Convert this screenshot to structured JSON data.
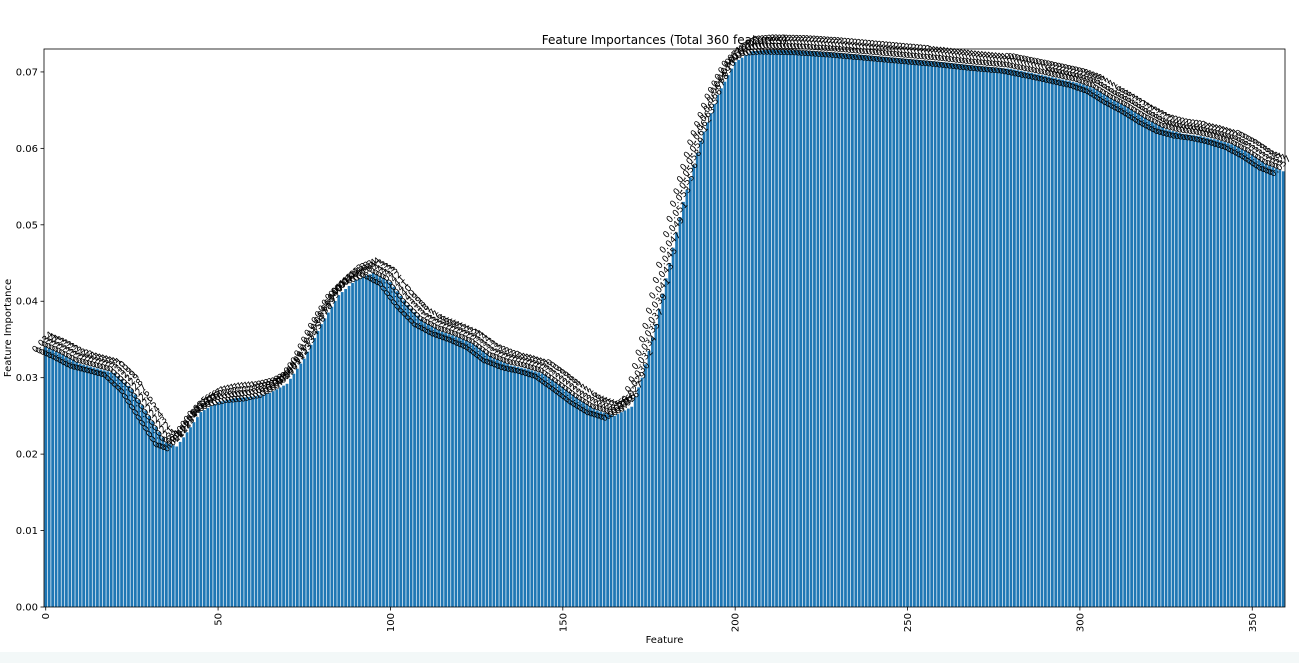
{
  "chart_data": {
    "type": "bar",
    "title": "Feature Importances (Total 360 features)",
    "xlabel": "Feature",
    "ylabel": "Feature Importance",
    "n_features": 360,
    "xlim": [
      -0.5,
      359.5
    ],
    "ylim": [
      0,
      0.073
    ],
    "xticks": [
      0,
      50,
      100,
      150,
      200,
      250,
      300,
      350
    ],
    "xtick_rotation": 90,
    "yticks": [
      0.0,
      0.01,
      0.02,
      0.03,
      0.04,
      0.05,
      0.06,
      0.07
    ],
    "ytick_labels": [
      "0.00",
      "0.01",
      "0.02",
      "0.03",
      "0.04",
      "0.05",
      "0.06",
      "0.07"
    ],
    "bar_color": "#1f77b4",
    "bar_labels": "value of each bar printed above it with 3 decimals, rotated 45 degrees",
    "grid": false,
    "legend": "none",
    "profile_knots": [
      [
        0,
        0.034
      ],
      [
        5,
        0.033
      ],
      [
        10,
        0.0318
      ],
      [
        15,
        0.0312
      ],
      [
        20,
        0.0306
      ],
      [
        25,
        0.0285
      ],
      [
        30,
        0.025
      ],
      [
        35,
        0.0215
      ],
      [
        38,
        0.021
      ],
      [
        40,
        0.0222
      ],
      [
        45,
        0.0255
      ],
      [
        50,
        0.0268
      ],
      [
        55,
        0.0273
      ],
      [
        60,
        0.0275
      ],
      [
        65,
        0.028
      ],
      [
        70,
        0.0292
      ],
      [
        75,
        0.0325
      ],
      [
        80,
        0.037
      ],
      [
        85,
        0.0408
      ],
      [
        90,
        0.0428
      ],
      [
        95,
        0.0437
      ],
      [
        100,
        0.0425
      ],
      [
        105,
        0.0395
      ],
      [
        110,
        0.0372
      ],
      [
        115,
        0.036
      ],
      [
        120,
        0.0352
      ],
      [
        125,
        0.0342
      ],
      [
        130,
        0.0325
      ],
      [
        135,
        0.0316
      ],
      [
        140,
        0.0311
      ],
      [
        145,
        0.0304
      ],
      [
        150,
        0.0288
      ],
      [
        155,
        0.0271
      ],
      [
        160,
        0.0257
      ],
      [
        165,
        0.025
      ],
      [
        170,
        0.0262
      ],
      [
        173,
        0.03
      ],
      [
        177,
        0.037
      ],
      [
        181,
        0.045
      ],
      [
        185,
        0.053
      ],
      [
        190,
        0.061
      ],
      [
        195,
        0.067
      ],
      [
        200,
        0.0713
      ],
      [
        205,
        0.0727
      ],
      [
        210,
        0.0729
      ],
      [
        220,
        0.0728
      ],
      [
        230,
        0.0725
      ],
      [
        240,
        0.0721
      ],
      [
        250,
        0.0717
      ],
      [
        260,
        0.0713
      ],
      [
        270,
        0.0708
      ],
      [
        280,
        0.0704
      ],
      [
        290,
        0.0695
      ],
      [
        300,
        0.0685
      ],
      [
        305,
        0.0677
      ],
      [
        310,
        0.0663
      ],
      [
        315,
        0.0651
      ],
      [
        320,
        0.0637
      ],
      [
        325,
        0.0625
      ],
      [
        330,
        0.0619
      ],
      [
        335,
        0.0616
      ],
      [
        340,
        0.0611
      ],
      [
        345,
        0.0604
      ],
      [
        350,
        0.0592
      ],
      [
        355,
        0.0577
      ],
      [
        359,
        0.057
      ]
    ]
  }
}
